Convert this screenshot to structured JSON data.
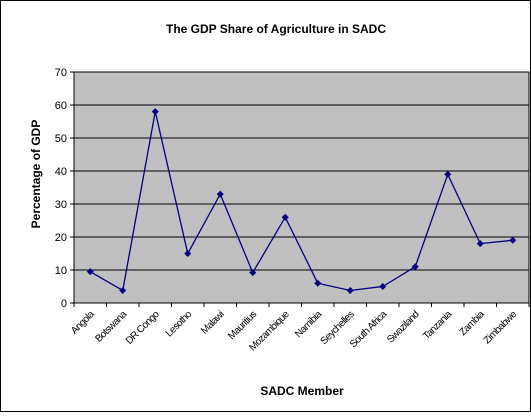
{
  "chart_data": {
    "type": "line",
    "title": "The GDP Share of Agriculture in SADC",
    "xlabel": "SADC Member",
    "ylabel": "Percentage of GDP",
    "categories": [
      "Angola",
      "Botswana",
      "DR Congo",
      "Lesotho",
      "Malawi",
      "Mauritius",
      "Mozambique",
      "Namibia",
      "Seychelles",
      "South Africa",
      "Swaziland",
      "Tanzania",
      "Zambia",
      "Zimbabwe"
    ],
    "series": [
      {
        "values": [
          9.5,
          3.8,
          58,
          15,
          33,
          9.2,
          26,
          6,
          3.8,
          5,
          11,
          39,
          18,
          19
        ]
      }
    ],
    "ylim": [
      0,
      70
    ],
    "yticks": [
      0,
      10,
      20,
      30,
      40,
      50,
      60,
      70
    ],
    "grid": true,
    "legend": "none",
    "colors": {
      "plot_background": "#c0c0c0",
      "line": "#000080",
      "marker": "#000080",
      "gridline": "#000000",
      "border": "#000000"
    }
  }
}
